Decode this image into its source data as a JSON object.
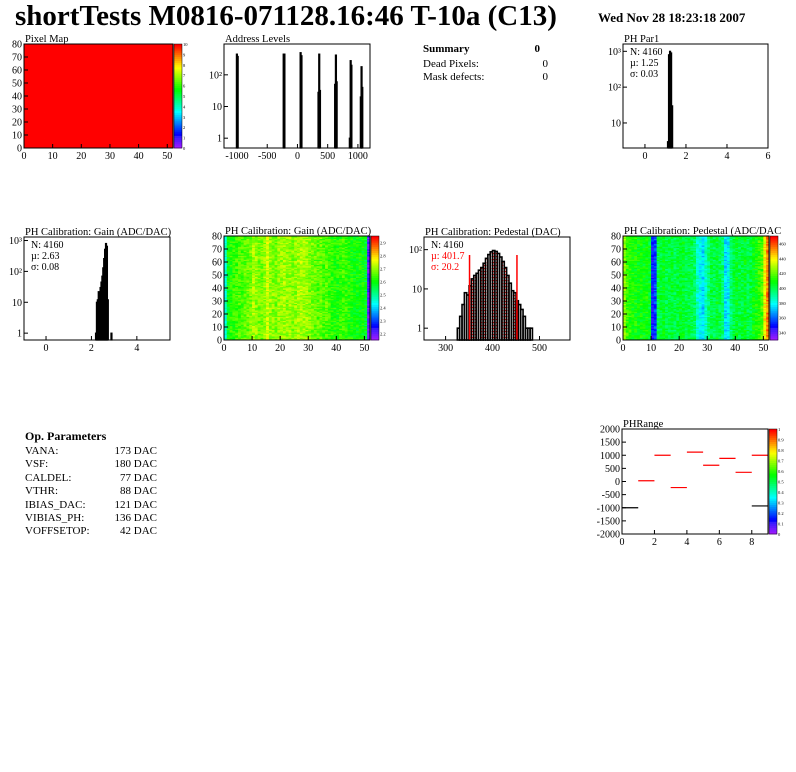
{
  "header": {
    "title": "shortTests M0816-071128.16:46 T-10a (C13)",
    "date": "Wed Nov 28 18:23:18 2007"
  },
  "summary": {
    "heading": "Summary",
    "total": "0",
    "rows": [
      {
        "label": "Dead Pixels:",
        "value": "0"
      },
      {
        "label": "Mask defects:",
        "value": "0"
      }
    ]
  },
  "op_parameters": {
    "heading": "Op. Parameters",
    "rows": [
      {
        "label": "VANA:",
        "value": "173 DAC"
      },
      {
        "label": "VSF:",
        "value": "180 DAC"
      },
      {
        "label": "CALDEL:",
        "value": "77 DAC"
      },
      {
        "label": "VTHR:",
        "value": "88 DAC"
      },
      {
        "label": "IBIAS_DAC:",
        "value": "121 DAC"
      },
      {
        "label": "VIBIAS_PH:",
        "value": "136 DAC"
      },
      {
        "label": "VOFFSETOP:",
        "value": "42 DAC"
      }
    ]
  },
  "chart_data": [
    {
      "id": "pixelmap",
      "type": "heatmap",
      "title": "Pixel Map",
      "xlim": [
        0,
        52
      ],
      "ylim": [
        0,
        80
      ],
      "xticks": [
        0,
        10,
        20,
        30,
        40,
        50
      ],
      "yticks": [
        0,
        10,
        20,
        30,
        40,
        50,
        60,
        70,
        80
      ],
      "zlim": [
        0,
        10
      ],
      "zticks": [
        "0",
        "1",
        "2",
        "3",
        "4",
        "5",
        "6",
        "7",
        "8",
        "9",
        "10"
      ],
      "uniform_value": 10
    },
    {
      "id": "address",
      "type": "bar",
      "title": "Address Levels",
      "xlim": [
        -1215,
        1200
      ],
      "log_y": true,
      "ylim": [
        0.49,
        940
      ],
      "xticks": [
        -1000,
        -500,
        0,
        500,
        1000
      ],
      "yticks": [
        {
          "v": 1,
          "l": "1"
        },
        {
          "v": 10,
          "l": "10"
        },
        {
          "v": 100,
          "l": "10²"
        }
      ],
      "bin_width": 12,
      "points": [
        [
          -1010,
          450
        ],
        [
          -997,
          380
        ],
        [
          -236,
          450
        ],
        [
          -224,
          450
        ],
        [
          44,
          500
        ],
        [
          58,
          400
        ],
        [
          340,
          28
        ],
        [
          352,
          450
        ],
        [
          364,
          32
        ],
        [
          615,
          50
        ],
        [
          628,
          420
        ],
        [
          640,
          60
        ],
        [
          858,
          1
        ],
        [
          872,
          280
        ],
        [
          884,
          200
        ],
        [
          1040,
          20
        ],
        [
          1052,
          180
        ],
        [
          1064,
          40
        ]
      ]
    },
    {
      "id": "phpar1",
      "type": "bar",
      "title": "PH Par1",
      "xlim": [
        -1.07,
        6
      ],
      "log_y": true,
      "ylim": [
        2,
        1600
      ],
      "xticks": [
        0,
        2,
        4,
        6
      ],
      "yticks": [
        {
          "v": 10,
          "l": "10"
        },
        {
          "v": 100,
          "l": "10²"
        },
        {
          "v": 1000,
          "l": "10³"
        }
      ],
      "stats": {
        "n": "N: 4160",
        "mean": "µ: 1.25",
        "sigma": "σ: 0.03"
      },
      "bin_width": 0.05,
      "points": [
        [
          1.1,
          3
        ],
        [
          1.15,
          800
        ],
        [
          1.2,
          1000
        ],
        [
          1.25,
          900
        ],
        [
          1.3,
          30
        ]
      ]
    },
    {
      "id": "gainhist",
      "type": "bar",
      "title": "PH Calibration: Gain (ADC/DAC)",
      "xlim": [
        -0.97,
        5.46
      ],
      "log_y": true,
      "ylim": [
        0.6,
        1300
      ],
      "xticks": [
        0,
        2,
        4
      ],
      "yticks": [
        {
          "v": 1,
          "l": "1"
        },
        {
          "v": 10,
          "l": "10"
        },
        {
          "v": 100,
          "l": "10²"
        },
        {
          "v": 1000,
          "l": "10³"
        }
      ],
      "stats": {
        "n": "N: 4160",
        "mean": "µ: 2.63",
        "sigma": "σ: 0.08"
      },
      "bin_width": 0.04,
      "points": [
        [
          2.18,
          1
        ],
        [
          2.22,
          10
        ],
        [
          2.26,
          12
        ],
        [
          2.3,
          22
        ],
        [
          2.34,
          18
        ],
        [
          2.38,
          30
        ],
        [
          2.42,
          45
        ],
        [
          2.46,
          70
        ],
        [
          2.5,
          130
        ],
        [
          2.54,
          260
        ],
        [
          2.58,
          520
        ],
        [
          2.62,
          800
        ],
        [
          2.66,
          650
        ],
        [
          2.7,
          12
        ],
        [
          2.86,
          1
        ]
      ]
    },
    {
      "id": "gainmap",
      "type": "heatmap",
      "title": "PH Calibration: Gain (ADC/DAC)",
      "xlim": [
        0,
        52
      ],
      "ylim": [
        0,
        80
      ],
      "xticks": [
        0,
        10,
        20,
        30,
        40,
        50
      ],
      "yticks": [
        0,
        10,
        20,
        30,
        40,
        50,
        60,
        70,
        80
      ],
      "zlim": [
        2.15,
        2.95
      ],
      "zticks": [
        "2.2",
        "2.3",
        "2.4",
        "2.5",
        "2.6",
        "2.7",
        "2.8",
        "2.9"
      ],
      "column_means": [
        2.45,
        2.6,
        2.62,
        2.63,
        2.64,
        2.65,
        2.65,
        2.66,
        2.67,
        2.68,
        2.72,
        2.7,
        2.68,
        2.68,
        2.7,
        2.74,
        2.7,
        2.69,
        2.68,
        2.7,
        2.7,
        2.71,
        2.7,
        2.7,
        2.69,
        2.7,
        2.71,
        2.72,
        2.71,
        2.7,
        2.69,
        2.68,
        2.67,
        2.66,
        2.67,
        2.65,
        2.66,
        2.64,
        2.63,
        2.62,
        2.62,
        2.63,
        2.64,
        2.63,
        2.62,
        2.61,
        2.6,
        2.6,
        2.61,
        2.6,
        2.58,
        2.2
      ]
    },
    {
      "id": "pedhist",
      "type": "bar",
      "title": "PH Calibration: Pedestal (DAC)",
      "xlim": [
        254,
        565
      ],
      "log_y": true,
      "ylim": [
        0.5,
        210
      ],
      "xticks": [
        300,
        400,
        500
      ],
      "yticks": [
        {
          "v": 1,
          "l": "1"
        },
        {
          "v": 10,
          "l": "10"
        },
        {
          "v": 100,
          "l": "10²"
        }
      ],
      "stats": {
        "n": "N: 4160",
        "mean": "µ: 401.7",
        "sigma": "σ: 20.2"
      },
      "fit_range": [
        351,
        452
      ],
      "fit_color": "#ff0000",
      "bin_width": 5,
      "points": [
        [
          325,
          1
        ],
        [
          330,
          2
        ],
        [
          335,
          4
        ],
        [
          340,
          8
        ],
        [
          345,
          7
        ],
        [
          350,
          12
        ],
        [
          355,
          18
        ],
        [
          360,
          22
        ],
        [
          365,
          25
        ],
        [
          370,
          30
        ],
        [
          375,
          35
        ],
        [
          380,
          45
        ],
        [
          385,
          60
        ],
        [
          390,
          75
        ],
        [
          395,
          88
        ],
        [
          400,
          95
        ],
        [
          405,
          90
        ],
        [
          410,
          80
        ],
        [
          415,
          65
        ],
        [
          420,
          50
        ],
        [
          425,
          35
        ],
        [
          430,
          22
        ],
        [
          435,
          14
        ],
        [
          440,
          9
        ],
        [
          445,
          8
        ],
        [
          450,
          5
        ],
        [
          455,
          4
        ],
        [
          460,
          3
        ],
        [
          465,
          2
        ],
        [
          470,
          1
        ],
        [
          475,
          1
        ],
        [
          480,
          1
        ]
      ]
    },
    {
      "id": "pedmap",
      "type": "heatmap",
      "title": "PH Calibration: Pedestal (ADC/DAC",
      "xlim": [
        0,
        52
      ],
      "ylim": [
        0,
        80
      ],
      "xticks": [
        0,
        10,
        20,
        30,
        40,
        50
      ],
      "yticks": [
        0,
        10,
        20,
        30,
        40,
        50,
        60,
        70,
        80
      ],
      "zlim": [
        330,
        470
      ],
      "zticks": [
        "340",
        "360",
        "380",
        "400",
        "420",
        "440",
        "460"
      ],
      "column_means": [
        425,
        415,
        412,
        410,
        410,
        408,
        410,
        408,
        410,
        405,
        350,
        355,
        400,
        402,
        405,
        400,
        402,
        404,
        400,
        402,
        405,
        404,
        400,
        402,
        400,
        398,
        385,
        380,
        375,
        385,
        395,
        402,
        400,
        404,
        400,
        395,
        375,
        378,
        395,
        402,
        405,
        400,
        402,
        405,
        400,
        402,
        408,
        410,
        415,
        418,
        440,
        455
      ]
    },
    {
      "id": "phrange",
      "type": "scatter",
      "title": "PHRange",
      "xlim": [
        0,
        9
      ],
      "ylim": [
        -2000,
        2000
      ],
      "xticks": [
        0,
        2,
        4,
        6,
        8
      ],
      "yticks": [
        -2000,
        -1500,
        -1000,
        -500,
        0,
        500,
        1000,
        1500,
        2000
      ],
      "zlim": [
        0,
        1
      ],
      "zticks": [
        "0",
        "0.1",
        "0.2",
        "0.3",
        "0.4",
        "0.5",
        "0.6",
        "0.7",
        "0.8",
        "0.9",
        "1"
      ],
      "series": [
        {
          "color": "#ff0000",
          "points": [
            [
              1,
              30
            ],
            [
              2,
              1000
            ],
            [
              3,
              -230
            ],
            [
              4,
              1120
            ],
            [
              5,
              620
            ],
            [
              6,
              880
            ],
            [
              7,
              350
            ],
            [
              8,
              1000
            ]
          ]
        },
        {
          "color": "#000000",
          "points": [
            [
              0,
              -1000
            ],
            [
              8,
              -930
            ]
          ]
        }
      ]
    }
  ]
}
